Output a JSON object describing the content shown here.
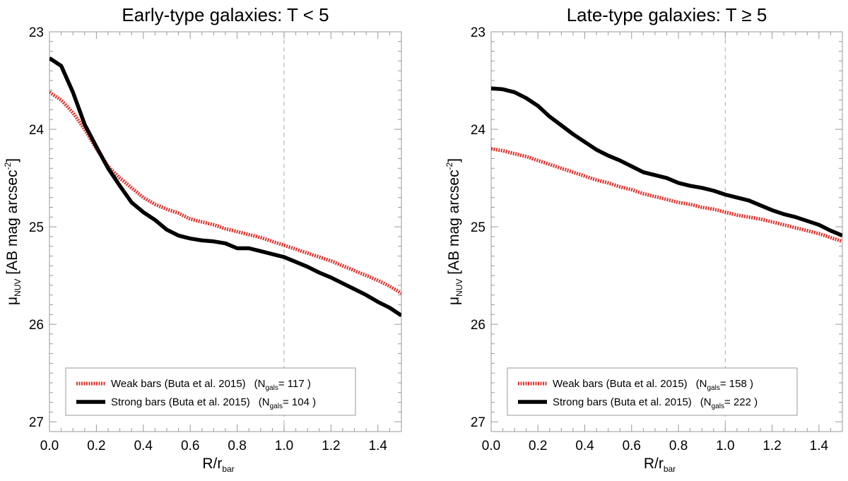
{
  "chart_data": [
    {
      "type": "line",
      "title": "Early-type galaxies: T < 5",
      "xlabel": {
        "main": "R/r",
        "sub": "bar"
      },
      "ylabel": {
        "symbol": "μ",
        "sub": "NUV",
        "main": "[AB mag arcsec",
        "sup": "-2",
        "close": "]"
      },
      "xlim": [
        0,
        1.5
      ],
      "ylim": [
        27.1,
        23.0
      ],
      "xticks": [
        "0.0",
        "0.2",
        "0.4",
        "0.6",
        "0.8",
        "1.0",
        "1.2",
        "1.4"
      ],
      "yticks": [
        "23",
        "24",
        "25",
        "26",
        "27"
      ],
      "vline": 1.0,
      "series": [
        {
          "name": "Weak bars (Buta et al. 2015)",
          "ngals": "117",
          "color": "#e0302a",
          "style": "dotted-thick",
          "x": [
            0.0,
            0.05,
            0.1,
            0.15,
            0.2,
            0.25,
            0.3,
            0.35,
            0.4,
            0.45,
            0.5,
            0.55,
            0.6,
            0.65,
            0.7,
            0.75,
            0.8,
            0.85,
            0.9,
            0.95,
            1.0,
            1.05,
            1.1,
            1.15,
            1.2,
            1.25,
            1.3,
            1.35,
            1.4,
            1.45,
            1.5
          ],
          "y": [
            23.62,
            23.7,
            23.83,
            24.0,
            24.2,
            24.38,
            24.5,
            24.6,
            24.7,
            24.77,
            24.82,
            24.86,
            24.92,
            24.95,
            24.98,
            25.02,
            25.05,
            25.08,
            25.11,
            25.15,
            25.19,
            25.23,
            25.27,
            25.31,
            25.35,
            25.4,
            25.45,
            25.5,
            25.55,
            25.61,
            25.68
          ]
        },
        {
          "name": "Strong bars (Buta et al. 2015)",
          "ngals": "104",
          "color": "#000000",
          "style": "solid-thick",
          "x": [
            0.0,
            0.05,
            0.1,
            0.15,
            0.2,
            0.25,
            0.3,
            0.35,
            0.4,
            0.45,
            0.5,
            0.55,
            0.6,
            0.65,
            0.7,
            0.75,
            0.8,
            0.85,
            0.9,
            0.95,
            1.0,
            1.05,
            1.1,
            1.15,
            1.2,
            1.25,
            1.3,
            1.35,
            1.4,
            1.45,
            1.5
          ],
          "y": [
            23.27,
            23.35,
            23.62,
            23.95,
            24.18,
            24.4,
            24.58,
            24.75,
            24.85,
            24.93,
            25.03,
            25.09,
            25.12,
            25.14,
            25.15,
            25.17,
            25.22,
            25.22,
            25.25,
            25.28,
            25.31,
            25.36,
            25.41,
            25.47,
            25.52,
            25.58,
            25.64,
            25.7,
            25.77,
            25.83,
            25.91
          ]
        }
      ]
    },
    {
      "type": "line",
      "title": "Late-type galaxies: T ≥ 5",
      "xlabel": {
        "main": "R/r",
        "sub": "bar"
      },
      "ylabel": {
        "symbol": "μ",
        "sub": "NUV",
        "main": "[AB mag arcsec",
        "sup": "-2",
        "close": "]"
      },
      "xlim": [
        0,
        1.5
      ],
      "ylim": [
        27.1,
        23.0
      ],
      "xticks": [
        "0.0",
        "0.2",
        "0.4",
        "0.6",
        "0.8",
        "1.0",
        "1.2",
        "1.4"
      ],
      "yticks": [
        "23",
        "24",
        "25",
        "26",
        "27"
      ],
      "vline": 1.0,
      "series": [
        {
          "name": "Weak bars (Buta et al. 2015)",
          "ngals": "158",
          "color": "#e0302a",
          "style": "dotted-thick",
          "x": [
            0.0,
            0.05,
            0.1,
            0.15,
            0.2,
            0.25,
            0.3,
            0.35,
            0.4,
            0.45,
            0.5,
            0.55,
            0.6,
            0.65,
            0.7,
            0.75,
            0.8,
            0.85,
            0.9,
            0.95,
            1.0,
            1.05,
            1.1,
            1.15,
            1.2,
            1.25,
            1.3,
            1.35,
            1.4,
            1.45,
            1.5
          ],
          "y": [
            24.2,
            24.22,
            24.25,
            24.28,
            24.32,
            24.36,
            24.4,
            24.44,
            24.48,
            24.52,
            24.55,
            24.59,
            24.62,
            24.66,
            24.69,
            24.72,
            24.75,
            24.77,
            24.8,
            24.82,
            24.85,
            24.88,
            24.9,
            24.92,
            24.95,
            24.98,
            25.01,
            25.04,
            25.07,
            25.11,
            25.15
          ]
        },
        {
          "name": "Strong bars (Buta et al. 2015)",
          "ngals": "222",
          "color": "#000000",
          "style": "solid-thick",
          "x": [
            0.0,
            0.05,
            0.1,
            0.15,
            0.2,
            0.25,
            0.3,
            0.35,
            0.4,
            0.45,
            0.5,
            0.55,
            0.6,
            0.65,
            0.7,
            0.75,
            0.8,
            0.85,
            0.9,
            0.95,
            1.0,
            1.05,
            1.1,
            1.15,
            1.2,
            1.25,
            1.3,
            1.35,
            1.4,
            1.45,
            1.5
          ],
          "y": [
            23.58,
            23.59,
            23.62,
            23.68,
            23.76,
            23.87,
            23.96,
            24.05,
            24.13,
            24.21,
            24.27,
            24.32,
            24.38,
            24.44,
            24.47,
            24.5,
            24.55,
            24.58,
            24.6,
            24.63,
            24.67,
            24.7,
            24.73,
            24.78,
            24.83,
            24.87,
            24.9,
            24.94,
            24.98,
            25.04,
            25.09
          ]
        }
      ]
    }
  ]
}
